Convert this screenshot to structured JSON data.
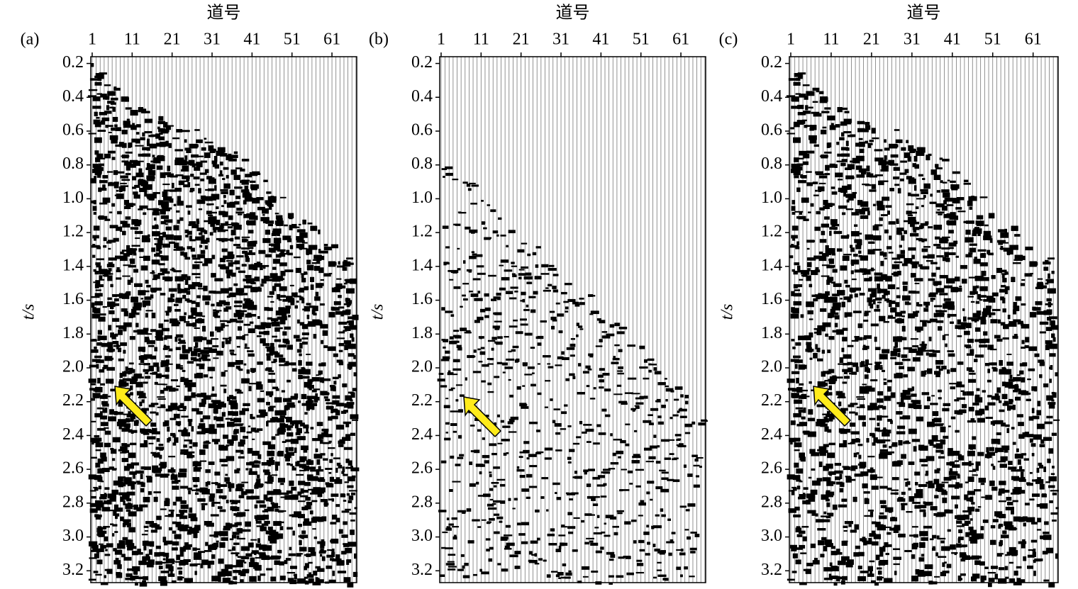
{
  "chart_data": [
    {
      "type": "seismic",
      "panel_label": "(a)",
      "xlabel": "道号",
      "ylabel": "t/s",
      "xlim": [
        0.65,
        67.2
      ],
      "xticks": [
        1,
        11,
        21,
        31,
        41,
        51,
        61
      ],
      "ylim": [
        0.16,
        3.27
      ],
      "y_inverted": true,
      "yticks": [
        0.2,
        0.4,
        0.6,
        0.8,
        {
          "value": 1.0,
          "label": "1.0"
        },
        1.2,
        1.4,
        1.6,
        1.8,
        {
          "value": 2.0,
          "label": "2.0"
        },
        2.2,
        2.4,
        2.6,
        2.8,
        {
          "value": 3.0,
          "label": "3.0"
        },
        3.2
      ]
    },
    {
      "type": "seismic",
      "panel_label": "(b)",
      "xlabel": "道号",
      "ylabel": "t/s",
      "xlim": [
        0.65,
        67.2
      ],
      "xticks": [
        1,
        11,
        21,
        31,
        41,
        51,
        61
      ],
      "ylim": [
        0.16,
        3.27
      ],
      "y_inverted": true,
      "yticks": [
        0.2,
        0.4,
        0.6,
        0.8,
        {
          "value": 1.0,
          "label": "1.0"
        },
        1.2,
        1.4,
        1.6,
        1.8,
        {
          "value": 2.0,
          "label": "2.0"
        },
        2.2,
        2.4,
        2.6,
        2.8,
        {
          "value": 3.0,
          "label": "3.0"
        },
        3.2
      ]
    },
    {
      "type": "seismic",
      "panel_label": "(c)",
      "xlabel": "道号",
      "ylabel": "t/s",
      "xlim": [
        0.65,
        67.2
      ],
      "xticks": [
        1,
        11,
        21,
        31,
        41,
        51,
        61
      ],
      "ylim": [
        0.16,
        3.27
      ],
      "y_inverted": true,
      "yticks": [
        0.2,
        0.4,
        0.6,
        0.8,
        {
          "value": 1.0,
          "label": "1.0"
        },
        1.2,
        1.4,
        1.6,
        1.8,
        {
          "value": 2.0,
          "label": "2.0"
        },
        2.2,
        2.4,
        2.6,
        2.8,
        {
          "value": 3.0,
          "label": "3.0"
        },
        3.2
      ]
    }
  ]
}
